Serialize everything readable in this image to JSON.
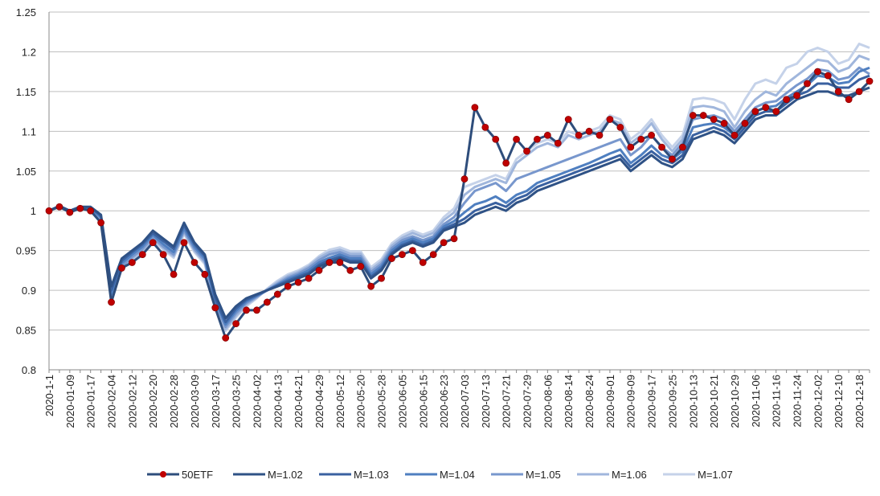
{
  "chart_data": {
    "type": "line",
    "categories": [
      "2020-1-1",
      null,
      "2020-01-09",
      null,
      "2020-01-17",
      null,
      "2020-02-04",
      null,
      "2020-02-12",
      null,
      "2020-02-20",
      null,
      "2020-02-28",
      null,
      "2020-03-09",
      null,
      "2020-03-17",
      null,
      "2020-03-25",
      null,
      "2020-04-02",
      null,
      "2020-04-13",
      null,
      "2020-04-21",
      null,
      "2020-04-29",
      null,
      "2020-05-12",
      null,
      "2020-05-20",
      null,
      "2020-05-28",
      null,
      "2020-06-05",
      null,
      "2020-06-15",
      null,
      "2020-06-23",
      null,
      "2020-07-03",
      null,
      "2020-07-13",
      null,
      "2020-07-21",
      null,
      "2020-07-29",
      null,
      "2020-08-06",
      null,
      "2020-08-14",
      null,
      "2020-08-24",
      null,
      "2020-09-01",
      null,
      "2020-09-09",
      null,
      "2020-09-17",
      null,
      "2020-09-25",
      null,
      "2020-10-13",
      null,
      "2020-10-21",
      null,
      "2020-10-29",
      null,
      "2020-11-06",
      null,
      "2020-11-16",
      null,
      "2020-11-24",
      null,
      "2020-12-02",
      null,
      "2020-12-10",
      null,
      "2020-12-18",
      null
    ],
    "series": [
      {
        "name": "50ETF",
        "color": "#2e4d7b",
        "marker_color": "#c00000",
        "values": [
          1.0,
          1.005,
          0.998,
          1.003,
          1.0,
          0.985,
          0.885,
          0.928,
          0.935,
          0.945,
          0.96,
          0.945,
          0.92,
          0.96,
          0.935,
          0.92,
          0.878,
          0.84,
          0.858,
          0.875,
          0.875,
          0.885,
          0.895,
          0.905,
          0.91,
          0.915,
          0.925,
          0.935,
          0.935,
          0.925,
          0.93,
          0.905,
          0.915,
          0.94,
          0.945,
          0.95,
          0.935,
          0.945,
          0.96,
          0.965,
          1.04,
          1.13,
          1.105,
          1.09,
          1.06,
          1.09,
          1.075,
          1.09,
          1.095,
          1.085,
          1.115,
          1.095,
          1.1,
          1.095,
          1.115,
          1.105,
          1.08,
          1.09,
          1.095,
          1.08,
          1.065,
          1.08,
          1.12,
          1.12,
          1.115,
          1.11,
          1.095,
          1.11,
          1.125,
          1.13,
          1.125,
          1.14,
          1.145,
          1.16,
          1.175,
          1.17,
          1.15,
          1.14,
          1.15,
          1.163
        ]
      },
      {
        "name": "M=1.02",
        "color": "#2f5286",
        "values": [
          1.0,
          1.006,
          1.0,
          1.005,
          1.005,
          0.995,
          0.905,
          0.94,
          0.95,
          0.96,
          0.975,
          0.965,
          0.955,
          0.985,
          0.96,
          0.945,
          0.895,
          0.865,
          0.88,
          0.89,
          0.895,
          0.9,
          0.905,
          0.91,
          0.915,
          0.92,
          0.93,
          0.935,
          0.94,
          0.935,
          0.935,
          0.915,
          0.925,
          0.945,
          0.955,
          0.96,
          0.955,
          0.96,
          0.975,
          0.98,
          0.985,
          0.995,
          1.0,
          1.005,
          1.0,
          1.01,
          1.015,
          1.025,
          1.03,
          1.035,
          1.04,
          1.045,
          1.05,
          1.055,
          1.06,
          1.065,
          1.05,
          1.06,
          1.07,
          1.06,
          1.055,
          1.065,
          1.09,
          1.095,
          1.1,
          1.095,
          1.085,
          1.1,
          1.115,
          1.12,
          1.12,
          1.13,
          1.14,
          1.145,
          1.15,
          1.15,
          1.145,
          1.145,
          1.15,
          1.155
        ]
      },
      {
        "name": "M=1.03",
        "color": "#3a61a0",
        "values": [
          1.0,
          1.006,
          1.0,
          1.005,
          1.004,
          0.994,
          0.9,
          0.937,
          0.948,
          0.958,
          0.972,
          0.962,
          0.952,
          0.982,
          0.958,
          0.943,
          0.89,
          0.86,
          0.877,
          0.888,
          0.894,
          0.9,
          0.906,
          0.912,
          0.917,
          0.922,
          0.932,
          0.938,
          0.942,
          0.937,
          0.937,
          0.917,
          0.927,
          0.947,
          0.957,
          0.962,
          0.957,
          0.962,
          0.977,
          0.983,
          0.99,
          1.0,
          1.005,
          1.01,
          1.005,
          1.015,
          1.02,
          1.03,
          1.035,
          1.04,
          1.045,
          1.05,
          1.055,
          1.06,
          1.065,
          1.07,
          1.055,
          1.065,
          1.075,
          1.065,
          1.06,
          1.07,
          1.095,
          1.1,
          1.105,
          1.1,
          1.09,
          1.105,
          1.12,
          1.125,
          1.125,
          1.135,
          1.145,
          1.15,
          1.16,
          1.16,
          1.155,
          1.155,
          1.165,
          1.17
        ]
      },
      {
        "name": "M=1.04",
        "color": "#4f7fc0",
        "values": [
          1.0,
          1.006,
          1.0,
          1.005,
          1.003,
          0.992,
          0.895,
          0.934,
          0.945,
          0.955,
          0.97,
          0.958,
          0.948,
          0.978,
          0.955,
          0.94,
          0.887,
          0.857,
          0.874,
          0.886,
          0.893,
          0.9,
          0.907,
          0.914,
          0.919,
          0.925,
          0.935,
          0.941,
          0.945,
          0.94,
          0.94,
          0.92,
          0.93,
          0.95,
          0.96,
          0.965,
          0.96,
          0.965,
          0.98,
          0.987,
          0.998,
          1.008,
          1.012,
          1.018,
          1.01,
          1.02,
          1.025,
          1.035,
          1.04,
          1.045,
          1.05,
          1.055,
          1.06,
          1.066,
          1.072,
          1.077,
          1.06,
          1.07,
          1.082,
          1.07,
          1.065,
          1.075,
          1.105,
          1.108,
          1.11,
          1.105,
          1.095,
          1.11,
          1.125,
          1.13,
          1.132,
          1.142,
          1.15,
          1.158,
          1.17,
          1.168,
          1.16,
          1.162,
          1.175,
          1.18
        ]
      },
      {
        "name": "M=1.05",
        "color": "#7897cd",
        "values": [
          1.0,
          1.006,
          1.0,
          1.005,
          1.002,
          0.99,
          0.892,
          0.93,
          0.942,
          0.952,
          0.967,
          0.955,
          0.945,
          0.975,
          0.952,
          0.937,
          0.884,
          0.854,
          0.871,
          0.884,
          0.892,
          0.9,
          0.908,
          0.916,
          0.921,
          0.928,
          0.938,
          0.945,
          0.948,
          0.943,
          0.943,
          0.923,
          0.933,
          0.953,
          0.963,
          0.968,
          0.963,
          0.968,
          0.983,
          0.992,
          1.01,
          1.025,
          1.03,
          1.035,
          1.025,
          1.04,
          1.045,
          1.05,
          1.055,
          1.06,
          1.065,
          1.07,
          1.075,
          1.08,
          1.085,
          1.09,
          1.07,
          1.08,
          1.095,
          1.08,
          1.07,
          1.085,
          1.115,
          1.118,
          1.12,
          1.115,
          1.1,
          1.115,
          1.13,
          1.136,
          1.138,
          1.148,
          1.158,
          1.166,
          1.178,
          1.176,
          1.165,
          1.168,
          1.18,
          1.172
        ]
      },
      {
        "name": "M=1.06",
        "color": "#a0b6dc",
        "values": [
          1.0,
          1.006,
          1.0,
          1.005,
          1.001,
          0.988,
          0.89,
          0.928,
          0.94,
          0.95,
          0.965,
          0.953,
          0.943,
          0.973,
          0.95,
          0.935,
          0.881,
          0.851,
          0.868,
          0.882,
          0.891,
          0.901,
          0.91,
          0.918,
          0.923,
          0.93,
          0.941,
          0.948,
          0.951,
          0.946,
          0.946,
          0.926,
          0.936,
          0.956,
          0.966,
          0.972,
          0.967,
          0.972,
          0.988,
          0.998,
          1.02,
          1.03,
          1.035,
          1.04,
          1.035,
          1.06,
          1.07,
          1.08,
          1.085,
          1.08,
          1.095,
          1.09,
          1.095,
          1.1,
          1.115,
          1.11,
          1.085,
          1.095,
          1.11,
          1.09,
          1.075,
          1.09,
          1.13,
          1.132,
          1.13,
          1.125,
          1.105,
          1.125,
          1.14,
          1.15,
          1.145,
          1.16,
          1.17,
          1.18,
          1.19,
          1.188,
          1.175,
          1.18,
          1.195,
          1.19
        ]
      },
      {
        "name": "M=1.07",
        "color": "#c5d2e9",
        "values": [
          1.0,
          1.006,
          1.0,
          1.005,
          1.0,
          0.986,
          0.888,
          0.926,
          0.938,
          0.948,
          0.963,
          0.951,
          0.941,
          0.971,
          0.948,
          0.933,
          0.879,
          0.849,
          0.866,
          0.88,
          0.89,
          0.902,
          0.912,
          0.92,
          0.925,
          0.932,
          0.943,
          0.951,
          0.954,
          0.949,
          0.949,
          0.929,
          0.939,
          0.959,
          0.969,
          0.975,
          0.97,
          0.975,
          0.992,
          1.003,
          1.03,
          1.035,
          1.04,
          1.045,
          1.04,
          1.065,
          1.075,
          1.085,
          1.09,
          1.085,
          1.1,
          1.095,
          1.1,
          1.105,
          1.12,
          1.115,
          1.09,
          1.1,
          1.115,
          1.095,
          1.08,
          1.095,
          1.14,
          1.142,
          1.14,
          1.135,
          1.115,
          1.14,
          1.16,
          1.165,
          1.16,
          1.18,
          1.185,
          1.2,
          1.205,
          1.2,
          1.185,
          1.19,
          1.21,
          1.205
        ]
      }
    ],
    "ylim": [
      0.8,
      1.25
    ],
    "yticks": [
      0.8,
      0.85,
      0.9,
      0.95,
      1,
      1.05,
      1.1,
      1.15,
      1.2,
      1.25
    ],
    "grid": true,
    "legend": "bottom"
  }
}
